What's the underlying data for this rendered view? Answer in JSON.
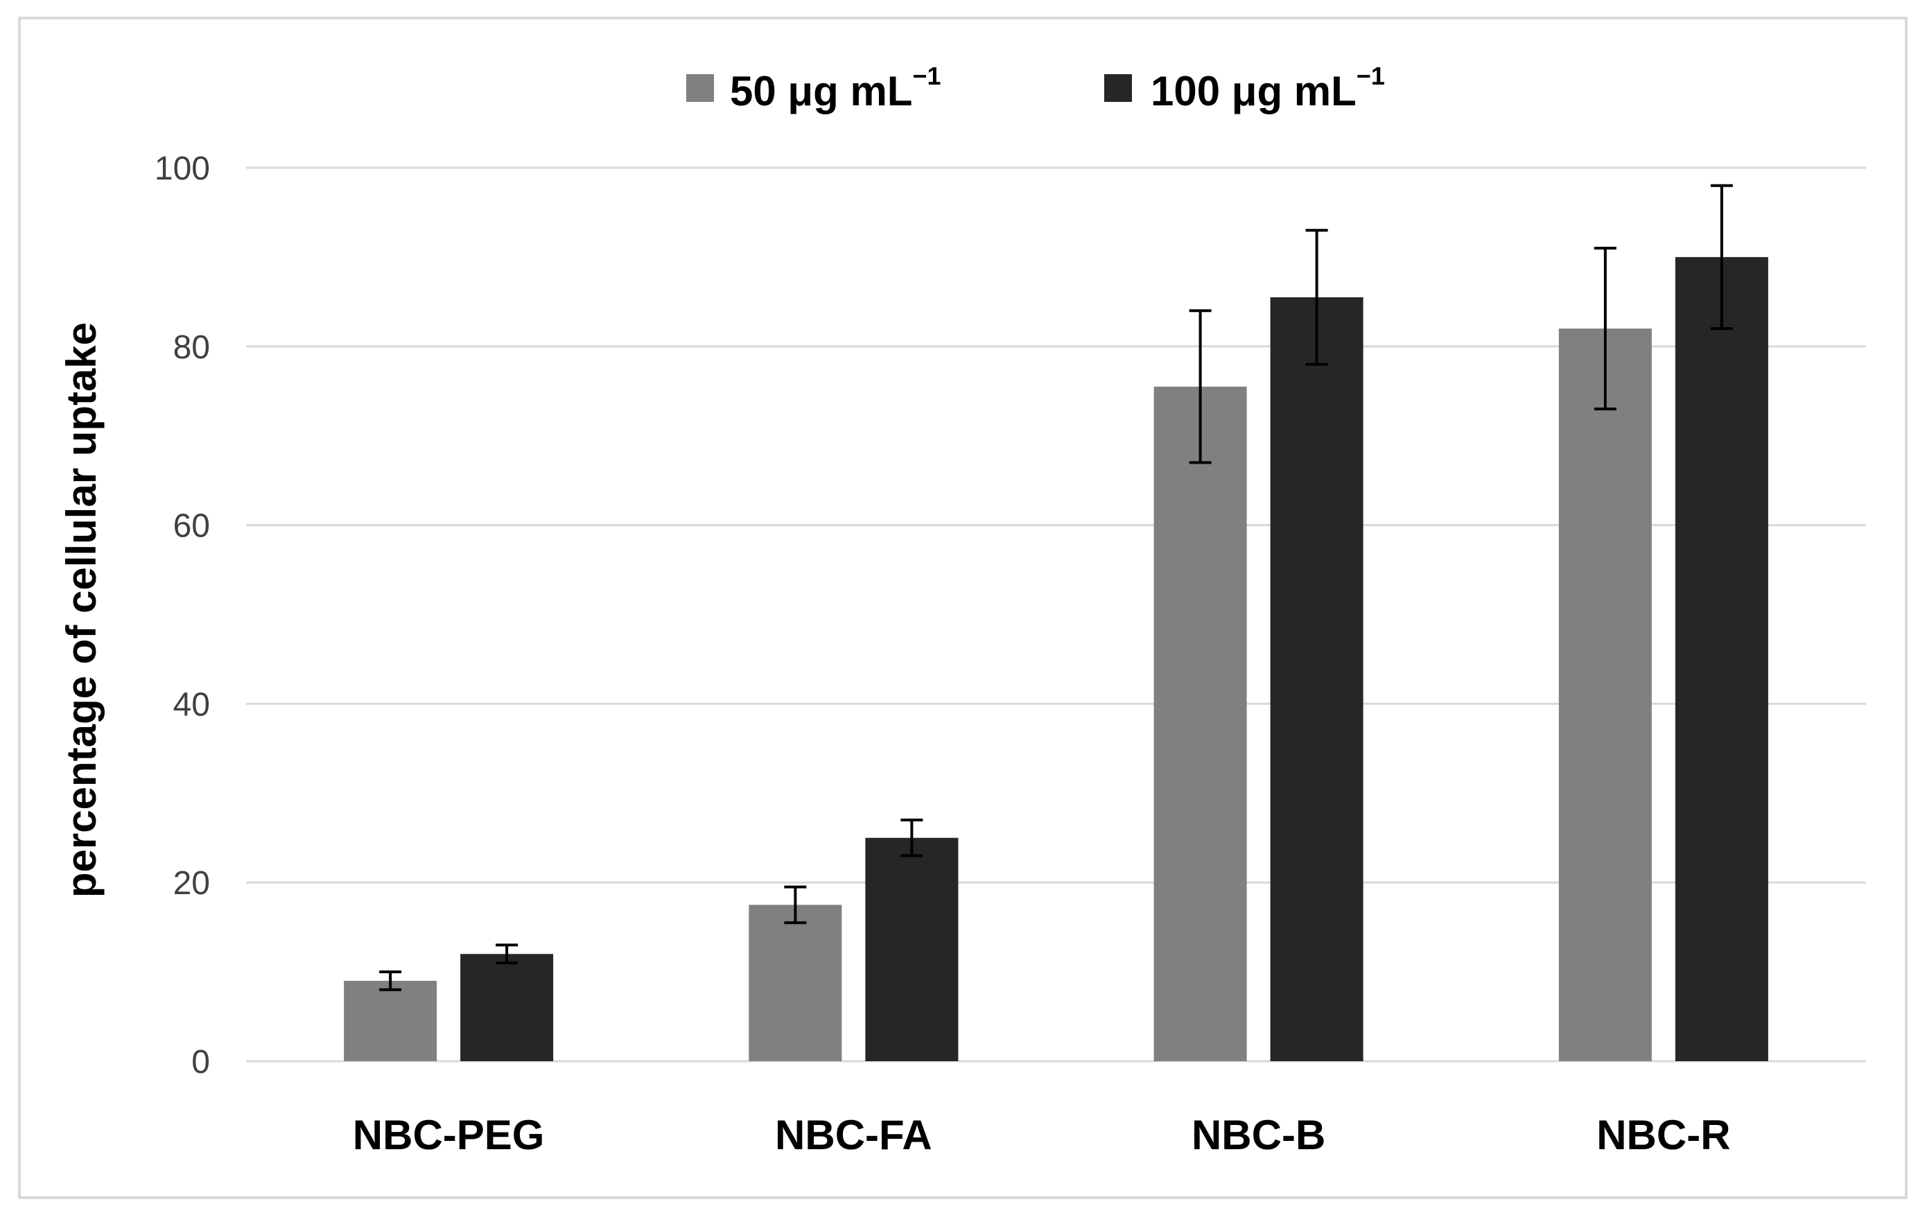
{
  "chart_data": {
    "type": "bar",
    "title": "",
    "xlabel": "",
    "ylabel": "percentage of cellular uptake",
    "ylim": [
      0,
      100
    ],
    "yticks": [
      0,
      20,
      40,
      60,
      80,
      100
    ],
    "grid": true,
    "legend_position": "top",
    "categories": [
      "NBC-PEG",
      "NBC-FA",
      "NBC-B",
      "NBC-R"
    ],
    "series": [
      {
        "name": "50 μg mL",
        "name_base": "50 μg mL",
        "name_sup": "−1",
        "color": "#808080",
        "values": [
          9,
          17.5,
          75.5,
          82
        ],
        "error": [
          1,
          2,
          8.5,
          9
        ]
      },
      {
        "name": "100 μg mL",
        "name_base": "100 μg mL",
        "name_sup": "−1",
        "color": "#262626",
        "values": [
          12,
          25,
          85.5,
          90
        ],
        "error": [
          1,
          2,
          7.5,
          8
        ]
      }
    ]
  }
}
